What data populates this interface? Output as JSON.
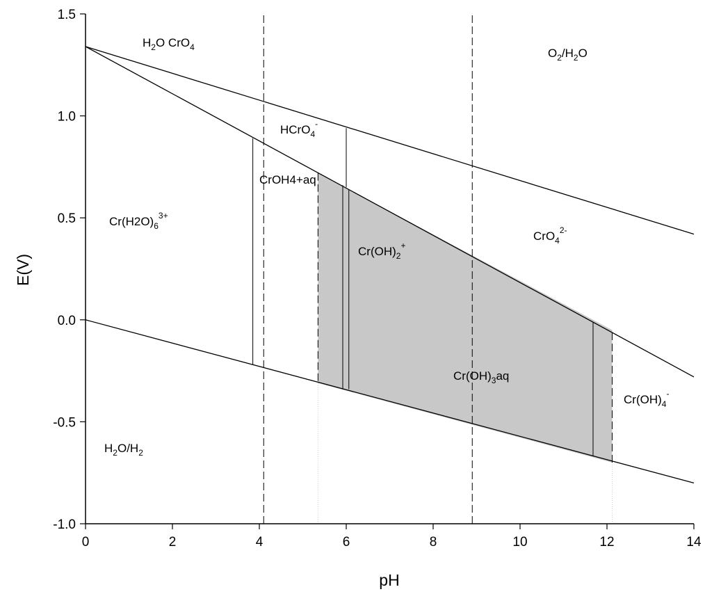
{
  "chart_data": {
    "type": "line",
    "title": "",
    "xlabel": "pH",
    "ylabel": "E(V)",
    "xlim": [
      0,
      14
    ],
    "ylim": [
      -1.0,
      1.5
    ],
    "grid": false,
    "x_ticks": [
      "0",
      "2",
      "4",
      "6",
      "8",
      "10",
      "12",
      "14"
    ],
    "y_ticks": [
      "1.5",
      "1.0",
      "0.5",
      "0.0",
      "-0.5",
      "-1.0"
    ],
    "lines": [
      {
        "name": "O2/H2O boundary",
        "x": [
          0,
          14
        ],
        "y": [
          1.34,
          0.42
        ]
      },
      {
        "name": "Cr(III)/CrO4 boundary",
        "x": [
          0,
          14
        ],
        "y": [
          1.34,
          -0.28
        ]
      },
      {
        "name": "H2O/H2 boundary",
        "x": [
          0,
          14
        ],
        "y": [
          0.0,
          -0.8
        ]
      }
    ],
    "solid_verticals": [
      {
        "x": 3.85,
        "y": [
          -0.22,
          0.89
        ]
      },
      {
        "x": 6.0,
        "y": [
          0.65,
          0.94
        ]
      },
      {
        "x": 5.92,
        "y": [
          -0.34,
          0.66
        ]
      },
      {
        "x": 6.06,
        "y": [
          -0.34,
          0.64
        ]
      },
      {
        "x": 11.68,
        "y": [
          -0.67,
          -0.01
        ]
      }
    ],
    "dashed_verticals": [
      {
        "x": 4.1,
        "y": [
          -1.0,
          1.5
        ]
      },
      {
        "x": 8.9,
        "y": [
          -1.0,
          1.5
        ]
      },
      {
        "x": 5.35,
        "y": [
          -0.3,
          0.73
        ]
      },
      {
        "x": 12.12,
        "y": [
          -0.7,
          -0.05
        ]
      }
    ],
    "dotted_verticals": [
      {
        "x": 5.35,
        "y": [
          -1.0,
          -0.3
        ]
      },
      {
        "x": 12.12,
        "y": [
          -1.0,
          -0.7
        ]
      }
    ],
    "shaded_region": {
      "color": "#c8c8c8",
      "x": [
        5.35,
        12.12,
        12.12,
        5.35
      ],
      "y": [
        0.72,
        -0.05,
        -0.7,
        -0.31
      ]
    },
    "labels": [
      {
        "text": "H2O CrO4",
        "x": 1.8,
        "y": 1.37
      },
      {
        "text": "O2/H2O",
        "x": 11.3,
        "y": 1.28
      },
      {
        "text": "HCrO4-",
        "x": 5.0,
        "y": 0.92
      },
      {
        "text": "CrOH4+aq",
        "x": 4.5,
        "y": 0.68
      },
      {
        "text": "Cr(H2O)63+",
        "x": 1.35,
        "y": 0.49
      },
      {
        "text": "Cr(OH)2+",
        "x": 6.6,
        "y": 0.33
      },
      {
        "text": "CrO42-",
        "x": 10.5,
        "y": 0.39
      },
      {
        "text": "Cr(OH)3aq",
        "x": 9.3,
        "y": -0.27
      },
      {
        "text": "Cr(OH)4-",
        "x": 13.1,
        "y": -0.49
      },
      {
        "text": "H2O/H2",
        "x": 0.75,
        "y": -0.65
      }
    ]
  }
}
